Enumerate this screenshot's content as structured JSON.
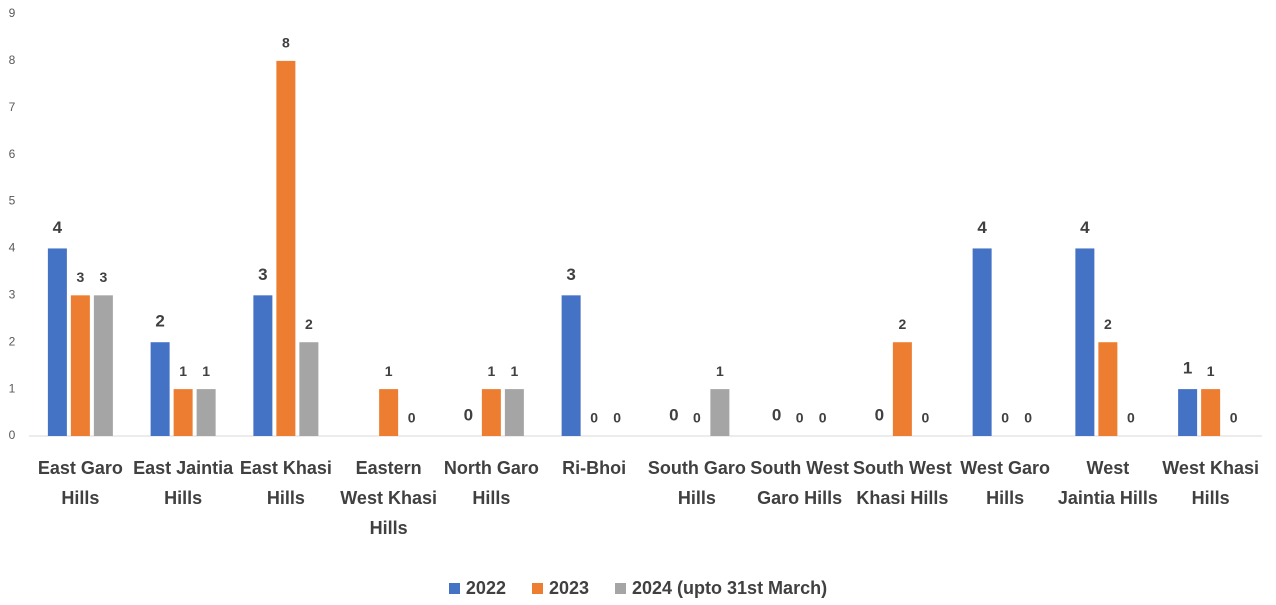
{
  "chart_data": {
    "type": "bar",
    "categories": [
      "East Garo Hills",
      "East Jaintia Hills",
      "East Khasi Hills",
      "Eastern West Khasi Hills",
      "North Garo Hills",
      "Ri-Bhoi",
      "South Garo Hills",
      "South West Garo Hills",
      "South West Khasi Hills",
      "West Garo Hills",
      "West Jaintia Hills",
      "West Khasi Hills"
    ],
    "series": [
      {
        "name": "2022",
        "color": "#4472c4",
        "values": [
          4,
          2,
          3,
          null,
          0,
          3,
          0,
          0,
          0,
          4,
          4,
          1
        ]
      },
      {
        "name": "2023",
        "color": "#ed7d31",
        "values": [
          3,
          1,
          8,
          1,
          1,
          0,
          0,
          0,
          2,
          0,
          2,
          1
        ]
      },
      {
        "name": "2024 (upto 31st March)",
        "color": "#a5a5a5",
        "values": [
          3,
          1,
          2,
          0,
          1,
          0,
          1,
          0,
          0,
          0,
          0,
          0
        ]
      }
    ],
    "ylim": [
      0,
      9
    ],
    "yticks": [
      0,
      1,
      2,
      3,
      4,
      5,
      6,
      7,
      8,
      9
    ],
    "grid": false,
    "legend": "bottom"
  }
}
